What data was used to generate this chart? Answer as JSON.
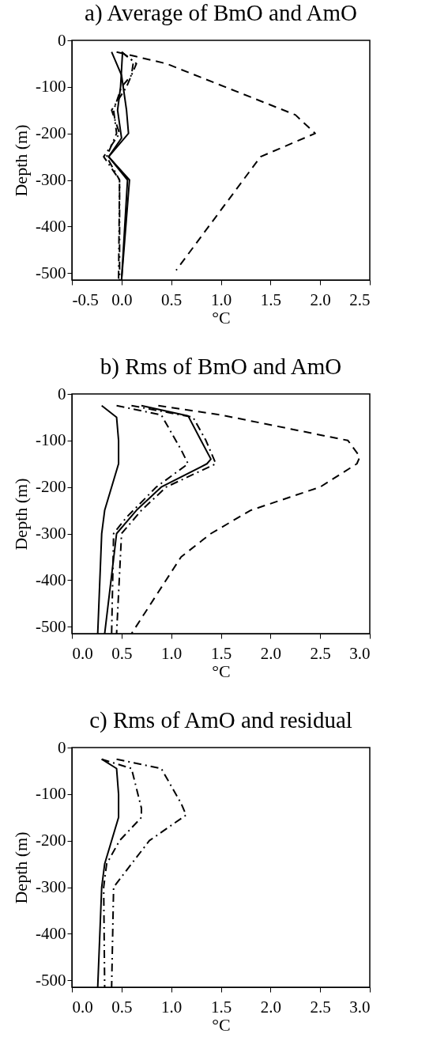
{
  "chart_data": [
    {
      "type": "line",
      "title": "a) Average of BmO and AmO",
      "xlabel": "°C",
      "ylabel": "Depth (m)",
      "xlim": [
        -0.5,
        2.5
      ],
      "xticks": [
        {
          "value": -0.5,
          "label": "-0.5"
        },
        {
          "value": 0,
          "label": "0.0"
        },
        {
          "value": 0.5,
          "label": "0.5"
        },
        {
          "value": 1,
          "label": "1.0"
        },
        {
          "value": 1.5,
          "label": "1.5"
        },
        {
          "value": 2,
          "label": "2.0"
        },
        {
          "value": 2.5,
          "label": "2.5"
        }
      ],
      "ylim": [
        -515,
        0
      ],
      "yticks": [
        0,
        -100,
        -200,
        -300,
        -400,
        -500
      ],
      "series": [
        {
          "color": "#000000",
          "line_style": "solid",
          "x": [
            0.01,
            -0.01,
            -0.04,
            0.0,
            -0.13,
            0.08,
            0.0
          ],
          "values": [
            -25,
            -100,
            -150,
            -210,
            -250,
            -300,
            -515
          ]
        },
        {
          "color": "#000000",
          "line_style": "solid",
          "x": [
            -0.1,
            0.0,
            0.05,
            0.07,
            -0.13,
            0.06,
            0.0
          ],
          "values": [
            -25,
            -75,
            -150,
            -200,
            -250,
            -300,
            -515
          ]
        },
        {
          "color": "#000000",
          "line_style": "dashdot",
          "x": [
            0.0,
            0.12,
            0.1,
            0.0,
            -0.08,
            -0.05,
            -0.15,
            -0.02,
            -0.02
          ],
          "values": [
            -25,
            -45,
            -75,
            -100,
            -150,
            -200,
            -250,
            -300,
            -515
          ]
        },
        {
          "color": "#000000",
          "line_style": "dashdot",
          "x": [
            0.0,
            0.15,
            0.05,
            -0.1,
            -0.02,
            -0.18,
            -0.02,
            -0.03
          ],
          "values": [
            -25,
            -50,
            -100,
            -150,
            -200,
            -250,
            -300,
            -515
          ]
        },
        {
          "color": "#000000",
          "line_style": "dashed",
          "x": [
            -0.05,
            0.15,
            0.45,
            1.75,
            1.95,
            1.4,
            0.55
          ],
          "values": [
            -25,
            -35,
            -50,
            -160,
            -200,
            -250,
            -494
          ]
        }
      ]
    },
    {
      "type": "line",
      "title": "b) Rms of BmO and AmO",
      "xlabel": "°C",
      "ylabel": "Depth (m)",
      "xlim": [
        0,
        3
      ],
      "xticks": [
        {
          "value": 0,
          "label": "0.0"
        },
        {
          "value": 0.5,
          "label": "0.5"
        },
        {
          "value": 1,
          "label": "1.0"
        },
        {
          "value": 1.5,
          "label": "1.5"
        },
        {
          "value": 2,
          "label": "2.0"
        },
        {
          "value": 2.5,
          "label": "2.5"
        },
        {
          "value": 3,
          "label": "3.0"
        }
      ],
      "ylim": [
        -515,
        0
      ],
      "yticks": [
        0,
        -100,
        -200,
        -300,
        -400,
        -500
      ],
      "series": [
        {
          "color": "#000000",
          "line_style": "solid",
          "x": [
            0.3,
            0.45,
            0.47,
            0.47,
            0.33,
            0.3,
            0.26
          ],
          "values": [
            -25,
            -50,
            -100,
            -150,
            -250,
            -300,
            -515
          ]
        },
        {
          "color": "#000000",
          "line_style": "solid",
          "x": [
            0.7,
            1.17,
            1.3,
            1.4,
            1.36,
            0.9,
            0.65,
            0.45,
            0.33
          ],
          "values": [
            -25,
            -47,
            -100,
            -140,
            -150,
            -200,
            -250,
            -300,
            -515
          ]
        },
        {
          "color": "#000000",
          "line_style": "dashdot",
          "x": [
            0.45,
            0.9,
            1.1,
            1.17,
            0.85,
            0.55,
            0.42,
            0.4
          ],
          "values": [
            -25,
            -45,
            -120,
            -150,
            -200,
            -265,
            -300,
            -515
          ]
        },
        {
          "color": "#000000",
          "line_style": "dashdot",
          "x": [
            0.6,
            1.22,
            1.35,
            1.45,
            0.95,
            0.7,
            0.5,
            0.45
          ],
          "values": [
            -25,
            -50,
            -100,
            -150,
            -200,
            -250,
            -300,
            -515
          ]
        },
        {
          "color": "#000000",
          "line_style": "dashed",
          "x": [
            0.87,
            1.5,
            2.78,
            2.9,
            2.87,
            2.5,
            1.8,
            1.4,
            1.1,
            0.6
          ],
          "values": [
            -25,
            -45,
            -100,
            -135,
            -150,
            -200,
            -250,
            -300,
            -350,
            -515
          ]
        }
      ]
    },
    {
      "type": "line",
      "title": "c) Rms of AmO and residual",
      "xlabel": "°C",
      "ylabel": "Depth (m)",
      "xlim": [
        0,
        3
      ],
      "xticks": [
        {
          "value": 0,
          "label": "0.0"
        },
        {
          "value": 0.5,
          "label": "0.5"
        },
        {
          "value": 1,
          "label": "1.0"
        },
        {
          "value": 1.5,
          "label": "1.5"
        },
        {
          "value": 2,
          "label": "2.0"
        },
        {
          "value": 2.5,
          "label": "2.5"
        },
        {
          "value": 3,
          "label": "3.0"
        }
      ],
      "ylim": [
        -515,
        0
      ],
      "yticks": [
        0,
        -100,
        -200,
        -300,
        -400,
        -500
      ],
      "series": [
        {
          "color": "#000000",
          "line_style": "solid",
          "x": [
            0.3,
            0.45,
            0.47,
            0.47,
            0.33,
            0.3,
            0.26
          ],
          "values": [
            -25,
            -45,
            -100,
            -150,
            -250,
            -300,
            -515
          ]
        },
        {
          "color": "#000000",
          "line_style": "dashdot",
          "x": [
            0.3,
            0.6,
            0.7,
            0.7,
            0.48,
            0.35,
            0.32,
            0.33
          ],
          "values": [
            -25,
            -45,
            -130,
            -150,
            -200,
            -250,
            -300,
            -515
          ]
        },
        {
          "color": "#000000",
          "line_style": "dashdot",
          "x": [
            0.45,
            0.9,
            1.1,
            1.15,
            0.78,
            0.6,
            0.42,
            0.4
          ],
          "values": [
            -25,
            -45,
            -120,
            -145,
            -200,
            -250,
            -300,
            -515
          ]
        }
      ]
    }
  ]
}
